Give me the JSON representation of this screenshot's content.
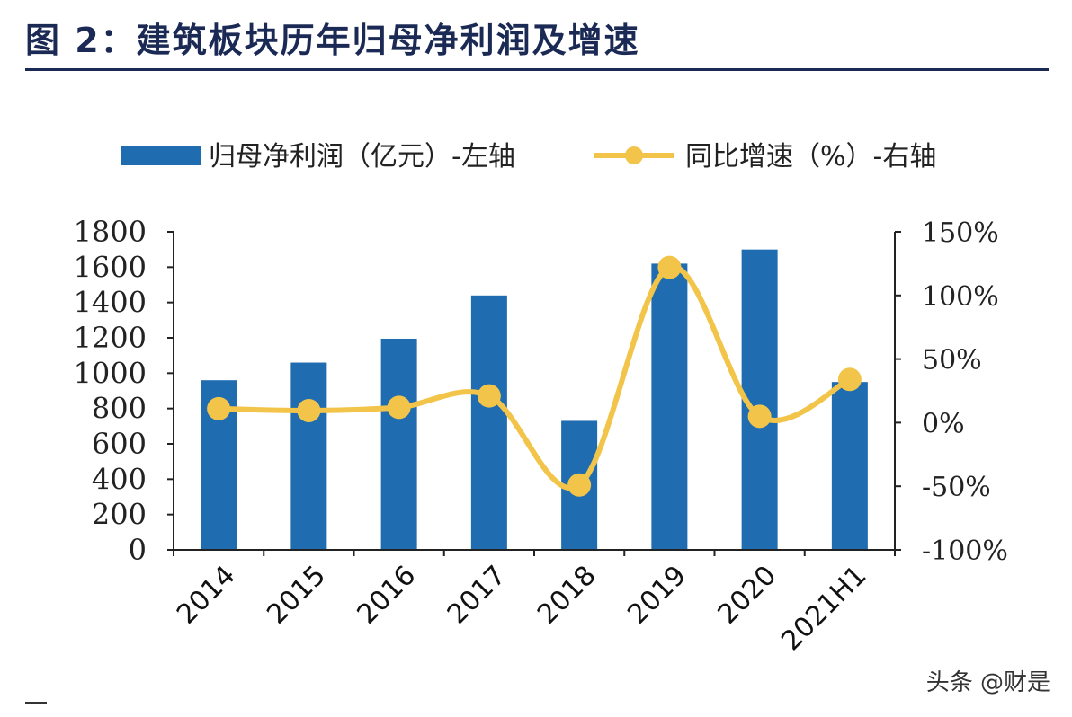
{
  "title": "图 2：建筑板块历年归母净利润及增速",
  "watermark": "头条 @财是",
  "colors": {
    "bar": "#1f6db0",
    "line": "#f2c54a",
    "title": "#1b2a55"
  },
  "chart_data": {
    "type": "bar+line",
    "categories": [
      "2014",
      "2015",
      "2016",
      "2017",
      "2018",
      "2019",
      "2020",
      "2021H1"
    ],
    "series": [
      {
        "name": "归母净利润（亿元）-左轴",
        "type": "bar",
        "axis": "left",
        "values": [
          960,
          1060,
          1195,
          1440,
          730,
          1620,
          1700,
          950
        ]
      },
      {
        "name": "同比增速（%）-右轴",
        "type": "line",
        "axis": "right",
        "values": [
          11,
          9.5,
          12,
          21,
          -49,
          122,
          5,
          34
        ]
      }
    ],
    "left_axis": {
      "ylim": [
        0,
        1800
      ],
      "ticks": [
        "0",
        "200",
        "400",
        "600",
        "800",
        "1000",
        "1200",
        "1400",
        "1600",
        "1800"
      ]
    },
    "right_axis": {
      "ylim": [
        -100,
        150
      ],
      "ticks": [
        "-100%",
        "-50%",
        "0%",
        "50%",
        "100%",
        "150%"
      ]
    },
    "legend_position": "top",
    "grid": false
  }
}
